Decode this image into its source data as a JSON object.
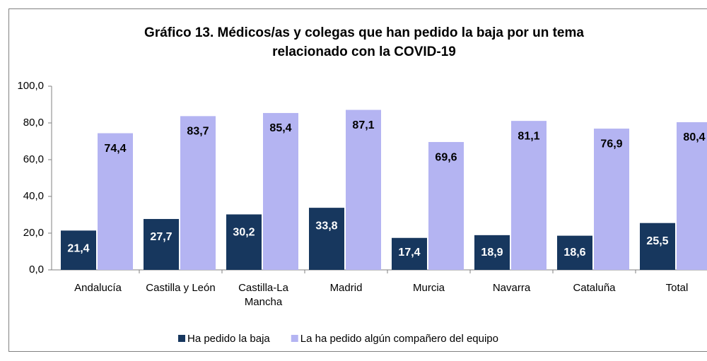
{
  "chart_data": {
    "type": "bar",
    "title": "Gráfico 13. Médicos/as y colegas que han pedido la baja por un tema relacionado con la COVID-19",
    "categories": [
      "Andalucía",
      "Castilla y León",
      "Castilla-La Mancha",
      "Madrid",
      "Murcia",
      "Navarra",
      "Cataluña",
      "Total"
    ],
    "series": [
      {
        "name": "Ha pedido la baja",
        "color": "#17375e",
        "values": [
          21.4,
          27.7,
          30.2,
          33.8,
          17.4,
          18.9,
          18.6,
          25.5
        ],
        "value_labels": [
          "21,4",
          "27,7",
          "30,2",
          "33,8",
          "17,4",
          "18,9",
          "18,6",
          "25,5"
        ]
      },
      {
        "name": "La ha pedido algún compañero del equipo",
        "color": "#b4b4f2",
        "values": [
          74.4,
          83.7,
          85.4,
          87.1,
          69.6,
          81.1,
          76.9,
          80.4
        ],
        "value_labels": [
          "74,4",
          "83,7",
          "85,4",
          "87,1",
          "69,6",
          "81,1",
          "76,9",
          "80,4"
        ]
      }
    ],
    "ylim": [
      0,
      100
    ],
    "yticks": [
      {
        "value": 0,
        "label": "0,0"
      },
      {
        "value": 20,
        "label": "20,0"
      },
      {
        "value": 40,
        "label": "40,0"
      },
      {
        "value": 60,
        "label": "60,0"
      },
      {
        "value": 80,
        "label": "80,0"
      },
      {
        "value": 100,
        "label": "100,0"
      }
    ],
    "legend": "bottom"
  }
}
